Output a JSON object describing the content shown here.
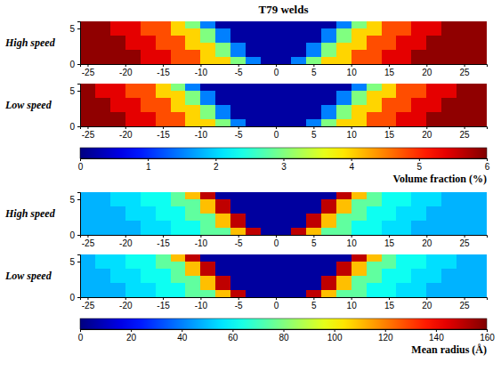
{
  "chart_data": [
    {
      "type": "heatmap",
      "title": "T79 welds",
      "ylabel": "High speed",
      "xlim": [
        -26,
        28
      ],
      "ylim": [
        0,
        6
      ],
      "xticks": [
        -25,
        -20,
        -15,
        -10,
        -5,
        0,
        5,
        10,
        15,
        20,
        25
      ],
      "yticks": [
        0,
        5
      ],
      "x_edges": [
        -28,
        -26,
        -24,
        -22,
        -20,
        -18,
        -16,
        -14,
        -12,
        -10,
        -8,
        -6,
        -4,
        -2,
        0,
        2,
        4,
        6,
        8,
        10,
        12,
        14,
        16,
        18,
        20,
        22,
        24,
        26,
        28
      ],
      "y_edges": [
        0,
        1,
        2,
        3,
        4,
        5,
        6
      ],
      "cells": [
        [
          5.9,
          5.9,
          5.9,
          5.9,
          5.9,
          5.4,
          5.4,
          4.8,
          4.8,
          4.0,
          4.0,
          3.0,
          1.5,
          0.2,
          0.2,
          1.5,
          3.0,
          4.0,
          4.0,
          4.8,
          4.8,
          5.4,
          5.4,
          5.9,
          5.9,
          5.9,
          5.9,
          5.9
        ],
        [
          5.9,
          5.9,
          5.9,
          5.9,
          5.9,
          5.4,
          5.4,
          4.8,
          4.8,
          4.0,
          3.0,
          1.5,
          0.2,
          0.2,
          0.2,
          0.2,
          1.5,
          3.0,
          4.0,
          4.8,
          4.8,
          5.4,
          5.4,
          5.9,
          5.9,
          5.9,
          5.9,
          5.9
        ],
        [
          5.9,
          5.9,
          5.9,
          5.9,
          5.4,
          5.4,
          4.8,
          4.8,
          4.0,
          4.0,
          3.0,
          1.5,
          0.2,
          0.2,
          0.2,
          0.2,
          1.5,
          3.0,
          4.0,
          4.0,
          4.8,
          4.8,
          5.4,
          5.4,
          5.9,
          5.9,
          5.9,
          5.9
        ],
        [
          5.9,
          5.9,
          5.9,
          5.9,
          5.4,
          5.4,
          4.8,
          4.8,
          4.0,
          3.0,
          1.5,
          0.2,
          0.2,
          0.2,
          0.2,
          0.2,
          0.2,
          1.5,
          3.0,
          4.0,
          4.8,
          4.8,
          5.4,
          5.4,
          5.9,
          5.9,
          5.9,
          5.9
        ],
        [
          5.9,
          5.9,
          5.9,
          5.4,
          5.4,
          4.8,
          4.8,
          4.0,
          4.0,
          3.0,
          1.5,
          0.2,
          0.2,
          0.2,
          0.2,
          0.2,
          0.2,
          1.5,
          3.0,
          4.0,
          4.0,
          4.8,
          4.8,
          5.4,
          5.4,
          5.9,
          5.9,
          5.9
        ],
        [
          5.9,
          5.9,
          5.9,
          5.4,
          5.4,
          4.8,
          4.8,
          4.0,
          3.0,
          1.5,
          0.2,
          0.2,
          0.2,
          0.2,
          0.2,
          0.2,
          0.2,
          0.2,
          1.5,
          3.0,
          4.0,
          4.8,
          4.8,
          5.4,
          5.4,
          5.9,
          5.9,
          5.9
        ]
      ]
    },
    {
      "type": "heatmap",
      "ylabel": "Low speed",
      "xlim": [
        -26,
        28
      ],
      "ylim": [
        0,
        6
      ],
      "xticks": [
        -25,
        -20,
        -15,
        -10,
        -5,
        0,
        5,
        10,
        15,
        20,
        25
      ],
      "yticks": [
        0,
        5
      ],
      "x_edges": [
        -28,
        -26,
        -24,
        -22,
        -20,
        -18,
        -16,
        -14,
        -12,
        -10,
        -8,
        -6,
        -4,
        -2,
        0,
        2,
        4,
        6,
        8,
        10,
        12,
        14,
        16,
        18,
        20,
        22,
        24,
        26,
        28
      ],
      "y_edges": [
        0,
        1,
        2,
        3,
        4,
        5,
        6
      ],
      "cells": [
        [
          5.9,
          5.9,
          5.9,
          5.9,
          5.4,
          5.4,
          4.8,
          4.8,
          4.0,
          4.0,
          3.0,
          1.5,
          0.2,
          0.2,
          0.2,
          0.2,
          1.5,
          3.0,
          4.0,
          4.0,
          4.8,
          4.8,
          5.4,
          5.4,
          5.9,
          5.9,
          5.9,
          5.9
        ],
        [
          5.9,
          5.9,
          5.9,
          5.9,
          5.4,
          5.4,
          4.8,
          4.8,
          4.0,
          3.0,
          1.5,
          0.2,
          0.2,
          0.2,
          0.2,
          0.2,
          0.2,
          1.5,
          3.0,
          4.0,
          4.8,
          4.8,
          5.4,
          5.4,
          5.9,
          5.9,
          5.9,
          5.9
        ],
        [
          5.9,
          5.9,
          5.9,
          5.4,
          5.4,
          4.8,
          4.8,
          4.0,
          4.0,
          3.0,
          1.5,
          0.2,
          0.2,
          0.2,
          0.2,
          0.2,
          0.2,
          1.5,
          3.0,
          4.0,
          4.0,
          4.8,
          4.8,
          5.4,
          5.4,
          5.9,
          5.9,
          5.9
        ],
        [
          5.9,
          5.9,
          5.9,
          5.4,
          5.4,
          4.8,
          4.8,
          4.0,
          3.0,
          1.5,
          0.2,
          0.2,
          0.2,
          0.2,
          0.2,
          0.2,
          0.2,
          0.2,
          1.5,
          3.0,
          4.0,
          4.8,
          4.8,
          5.4,
          5.4,
          5.9,
          5.9,
          5.9
        ],
        [
          5.9,
          5.9,
          5.4,
          5.4,
          4.8,
          4.8,
          4.0,
          4.0,
          3.0,
          1.5,
          0.2,
          0.2,
          0.2,
          0.2,
          0.2,
          0.2,
          0.2,
          0.2,
          1.5,
          3.0,
          4.0,
          4.0,
          4.8,
          4.8,
          5.4,
          5.4,
          5.9,
          5.9
        ],
        [
          5.9,
          5.9,
          5.4,
          5.4,
          4.8,
          4.8,
          4.0,
          3.0,
          1.5,
          0.2,
          0.2,
          0.2,
          0.2,
          0.2,
          0.2,
          0.2,
          0.2,
          0.2,
          0.2,
          1.5,
          3.0,
          4.0,
          4.8,
          4.8,
          5.4,
          5.4,
          5.9,
          5.9
        ]
      ],
      "colorbar": {
        "label": "Volume fraction (%)",
        "range": [
          0,
          6
        ],
        "ticks": [
          0,
          1,
          2,
          3,
          4,
          5,
          6
        ]
      }
    },
    {
      "type": "heatmap",
      "ylabel": "High speed",
      "xlim": [
        -26,
        28
      ],
      "ylim": [
        0,
        6
      ],
      "xticks": [
        -25,
        -20,
        -15,
        -10,
        -5,
        0,
        5,
        10,
        15,
        20,
        25
      ],
      "yticks": [
        0,
        5
      ],
      "x_edges": [
        -28,
        -26,
        -24,
        -22,
        -20,
        -18,
        -16,
        -14,
        -12,
        -10,
        -8,
        -6,
        -4,
        -2,
        0,
        2,
        4,
        6,
        8,
        10,
        12,
        14,
        16,
        18,
        20,
        22,
        24,
        26,
        28
      ],
      "y_edges": [
        0,
        1,
        2,
        3,
        4,
        5,
        6
      ],
      "cells": [
        [
          48,
          48,
          48,
          48,
          48,
          55,
          55,
          62,
          62,
          75,
          75,
          110,
          150,
          5,
          5,
          150,
          110,
          75,
          75,
          62,
          62,
          55,
          55,
          48,
          48,
          48,
          48,
          48
        ],
        [
          48,
          48,
          48,
          48,
          48,
          55,
          55,
          62,
          62,
          75,
          110,
          150,
          5,
          5,
          5,
          5,
          150,
          110,
          75,
          62,
          62,
          55,
          55,
          48,
          48,
          48,
          48,
          48
        ],
        [
          48,
          48,
          48,
          48,
          55,
          55,
          62,
          62,
          75,
          75,
          110,
          150,
          5,
          5,
          5,
          5,
          150,
          110,
          75,
          75,
          62,
          62,
          55,
          55,
          48,
          48,
          48,
          48
        ],
        [
          48,
          48,
          48,
          48,
          55,
          55,
          62,
          62,
          75,
          110,
          150,
          5,
          5,
          5,
          5,
          5,
          5,
          150,
          110,
          75,
          62,
          62,
          55,
          55,
          48,
          48,
          48,
          48
        ],
        [
          48,
          48,
          48,
          55,
          55,
          62,
          62,
          75,
          75,
          110,
          150,
          5,
          5,
          5,
          5,
          5,
          5,
          150,
          110,
          75,
          75,
          62,
          62,
          55,
          55,
          48,
          48,
          48
        ],
        [
          48,
          48,
          48,
          55,
          55,
          62,
          62,
          75,
          110,
          150,
          5,
          5,
          5,
          5,
          5,
          5,
          5,
          5,
          150,
          110,
          75,
          62,
          62,
          55,
          55,
          48,
          48,
          48
        ]
      ]
    },
    {
      "type": "heatmap",
      "ylabel": "Low speed",
      "xlim": [
        -26,
        28
      ],
      "ylim": [
        0,
        6
      ],
      "xticks": [
        -25,
        -20,
        -15,
        -10,
        -5,
        0,
        5,
        10,
        15,
        20,
        25
      ],
      "yticks": [
        0,
        5
      ],
      "x_edges": [
        -28,
        -26,
        -24,
        -22,
        -20,
        -18,
        -16,
        -14,
        -12,
        -10,
        -8,
        -6,
        -4,
        -2,
        0,
        2,
        4,
        6,
        8,
        10,
        12,
        14,
        16,
        18,
        20,
        22,
        24,
        26,
        28
      ],
      "y_edges": [
        0,
        1,
        2,
        3,
        4,
        5,
        6
      ],
      "cells": [
        [
          48,
          48,
          48,
          48,
          55,
          55,
          62,
          62,
          75,
          75,
          110,
          150,
          5,
          5,
          5,
          5,
          150,
          110,
          75,
          75,
          62,
          62,
          55,
          55,
          48,
          48,
          48,
          48
        ],
        [
          48,
          48,
          48,
          48,
          55,
          55,
          62,
          62,
          75,
          110,
          150,
          5,
          5,
          5,
          5,
          5,
          5,
          150,
          110,
          75,
          62,
          62,
          55,
          55,
          48,
          48,
          48,
          48
        ],
        [
          48,
          48,
          48,
          55,
          55,
          62,
          62,
          75,
          75,
          110,
          150,
          5,
          5,
          5,
          5,
          5,
          5,
          150,
          110,
          75,
          75,
          62,
          62,
          55,
          55,
          48,
          48,
          48
        ],
        [
          48,
          48,
          48,
          55,
          55,
          62,
          62,
          75,
          110,
          150,
          5,
          5,
          5,
          5,
          5,
          5,
          5,
          5,
          150,
          110,
          75,
          62,
          62,
          55,
          55,
          48,
          48,
          48
        ],
        [
          48,
          48,
          55,
          55,
          62,
          62,
          75,
          75,
          110,
          150,
          5,
          5,
          5,
          5,
          5,
          5,
          5,
          5,
          150,
          110,
          75,
          75,
          62,
          62,
          55,
          55,
          48,
          48
        ],
        [
          48,
          48,
          55,
          55,
          62,
          62,
          75,
          110,
          150,
          5,
          5,
          5,
          5,
          5,
          5,
          5,
          5,
          5,
          5,
          150,
          110,
          75,
          62,
          62,
          55,
          55,
          48,
          48
        ]
      ],
      "colorbar": {
        "label": "Mean radius (Å)",
        "range": [
          0,
          160
        ],
        "ticks": [
          0,
          20,
          40,
          60,
          80,
          100,
          120,
          140,
          160
        ]
      }
    }
  ]
}
